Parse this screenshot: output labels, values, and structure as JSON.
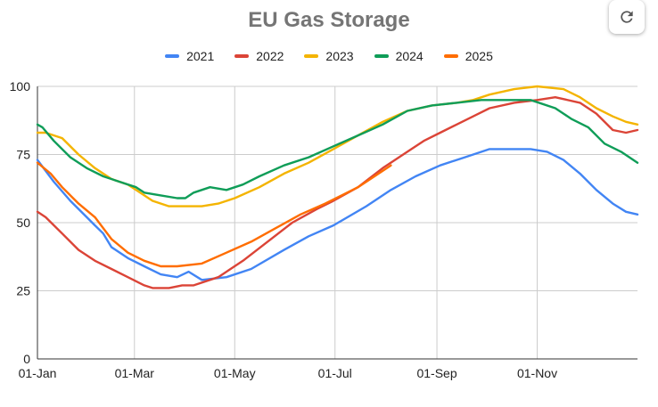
{
  "chart_data": {
    "type": "line",
    "title": "EU Gas Storage",
    "xlabel": "",
    "ylabel": "",
    "ylim": [
      0,
      100
    ],
    "xlim": [
      0,
      365
    ],
    "yticks": [
      0,
      25,
      50,
      75,
      100
    ],
    "xticks": [
      {
        "label": "01-Jan",
        "day": 0
      },
      {
        "label": "01-Mar",
        "day": 59
      },
      {
        "label": "01-May",
        "day": 120
      },
      {
        "label": "01-Jul",
        "day": 181
      },
      {
        "label": "01-Sep",
        "day": 243
      },
      {
        "label": "01-Nov",
        "day": 304
      }
    ],
    "legend_position": "top",
    "series": [
      {
        "name": "2021",
        "color": "#4285F4",
        "points": [
          [
            0,
            73
          ],
          [
            10,
            65
          ],
          [
            20,
            58
          ],
          [
            30,
            52
          ],
          [
            35,
            49
          ],
          [
            40,
            46
          ],
          [
            45,
            41
          ],
          [
            55,
            37
          ],
          [
            65,
            34
          ],
          [
            75,
            31
          ],
          [
            85,
            30
          ],
          [
            92,
            32
          ],
          [
            100,
            29
          ],
          [
            115,
            30
          ],
          [
            130,
            33
          ],
          [
            150,
            40
          ],
          [
            165,
            45
          ],
          [
            180,
            49
          ],
          [
            200,
            56
          ],
          [
            215,
            62
          ],
          [
            230,
            67
          ],
          [
            245,
            71
          ],
          [
            260,
            74
          ],
          [
            275,
            77
          ],
          [
            285,
            77
          ],
          [
            300,
            77
          ],
          [
            310,
            76
          ],
          [
            320,
            73
          ],
          [
            330,
            68
          ],
          [
            340,
            62
          ],
          [
            350,
            57
          ],
          [
            358,
            54
          ],
          [
            365,
            53
          ]
        ]
      },
      {
        "name": "2022",
        "color": "#DB4437",
        "points": [
          [
            0,
            54
          ],
          [
            5,
            52
          ],
          [
            15,
            46
          ],
          [
            25,
            40
          ],
          [
            35,
            36
          ],
          [
            45,
            33
          ],
          [
            55,
            30
          ],
          [
            65,
            27
          ],
          [
            70,
            26
          ],
          [
            80,
            26
          ],
          [
            88,
            27
          ],
          [
            95,
            27
          ],
          [
            110,
            30
          ],
          [
            125,
            36
          ],
          [
            140,
            43
          ],
          [
            155,
            50
          ],
          [
            170,
            55
          ],
          [
            180,
            58
          ],
          [
            195,
            63
          ],
          [
            210,
            70
          ],
          [
            225,
            76
          ],
          [
            235,
            80
          ],
          [
            245,
            83
          ],
          [
            255,
            86
          ],
          [
            265,
            89
          ],
          [
            275,
            92
          ],
          [
            290,
            94
          ],
          [
            304,
            95
          ],
          [
            315,
            96
          ],
          [
            330,
            94
          ],
          [
            340,
            90
          ],
          [
            350,
            84
          ],
          [
            358,
            83
          ],
          [
            365,
            84
          ]
        ]
      },
      {
        "name": "2023",
        "color": "#F4B400",
        "points": [
          [
            0,
            83
          ],
          [
            5,
            83
          ],
          [
            15,
            81
          ],
          [
            25,
            75
          ],
          [
            35,
            70
          ],
          [
            45,
            66
          ],
          [
            55,
            64
          ],
          [
            60,
            62
          ],
          [
            70,
            58
          ],
          [
            80,
            56
          ],
          [
            90,
            56
          ],
          [
            100,
            56
          ],
          [
            110,
            57
          ],
          [
            120,
            59
          ],
          [
            135,
            63
          ],
          [
            150,
            68
          ],
          [
            165,
            72
          ],
          [
            180,
            77
          ],
          [
            195,
            82
          ],
          [
            210,
            87
          ],
          [
            225,
            91
          ],
          [
            240,
            93
          ],
          [
            255,
            94
          ],
          [
            265,
            95
          ],
          [
            275,
            97
          ],
          [
            290,
            99
          ],
          [
            304,
            100
          ],
          [
            320,
            99
          ],
          [
            330,
            96
          ],
          [
            340,
            92
          ],
          [
            350,
            89
          ],
          [
            358,
            87
          ],
          [
            365,
            86
          ]
        ]
      },
      {
        "name": "2024",
        "color": "#0F9D58",
        "points": [
          [
            0,
            86
          ],
          [
            3,
            85
          ],
          [
            10,
            80
          ],
          [
            20,
            74
          ],
          [
            30,
            70
          ],
          [
            40,
            67
          ],
          [
            50,
            65
          ],
          [
            60,
            63
          ],
          [
            65,
            61
          ],
          [
            75,
            60
          ],
          [
            85,
            59
          ],
          [
            90,
            59
          ],
          [
            95,
            61
          ],
          [
            105,
            63
          ],
          [
            115,
            62
          ],
          [
            125,
            64
          ],
          [
            135,
            67
          ],
          [
            150,
            71
          ],
          [
            165,
            74
          ],
          [
            180,
            78
          ],
          [
            195,
            82
          ],
          [
            210,
            86
          ],
          [
            225,
            91
          ],
          [
            240,
            93
          ],
          [
            255,
            94
          ],
          [
            270,
            95
          ],
          [
            285,
            95
          ],
          [
            300,
            95
          ],
          [
            315,
            92
          ],
          [
            325,
            88
          ],
          [
            335,
            85
          ],
          [
            345,
            79
          ],
          [
            355,
            76
          ],
          [
            365,
            72
          ]
        ]
      },
      {
        "name": "2025",
        "color": "#FF6D00",
        "points": [
          [
            0,
            72
          ],
          [
            8,
            68
          ],
          [
            15,
            63
          ],
          [
            25,
            57
          ],
          [
            35,
            52
          ],
          [
            45,
            44
          ],
          [
            55,
            39
          ],
          [
            65,
            36
          ],
          [
            75,
            34
          ],
          [
            85,
            34
          ],
          [
            100,
            35
          ],
          [
            115,
            39
          ],
          [
            130,
            43
          ],
          [
            145,
            48
          ],
          [
            160,
            53
          ],
          [
            175,
            57
          ],
          [
            185,
            60
          ],
          [
            195,
            63
          ],
          [
            205,
            67
          ],
          [
            215,
            71
          ]
        ]
      }
    ]
  },
  "ui": {
    "refresh_icon": "refresh-icon"
  }
}
